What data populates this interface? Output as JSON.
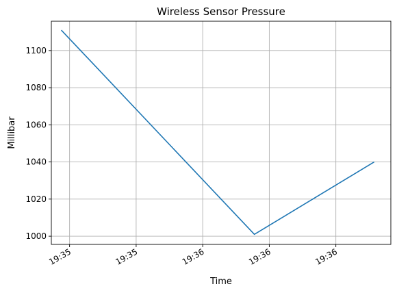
{
  "chart_data": {
    "type": "line",
    "title": "Wireless Sensor Pressure",
    "xlabel": "Time",
    "ylabel": "Millibar",
    "grid": true,
    "x_tick_labels": [
      "19:35",
      "19:35",
      "19:36",
      "19:36",
      "19:36"
    ],
    "x_ticks": [
      0.62,
      5.62,
      10.62,
      15.62,
      20.62
    ],
    "xlim": [
      -0.75,
      24.75
    ],
    "y_ticks": [
      1000,
      1020,
      1040,
      1060,
      1080,
      1100
    ],
    "ylim": [
      995.6,
      1115.8
    ],
    "series": [
      {
        "color": "#1f77b4",
        "x": [
          0,
          14.5,
          23.5
        ],
        "y": [
          1111,
          1001,
          1040
        ]
      }
    ]
  }
}
